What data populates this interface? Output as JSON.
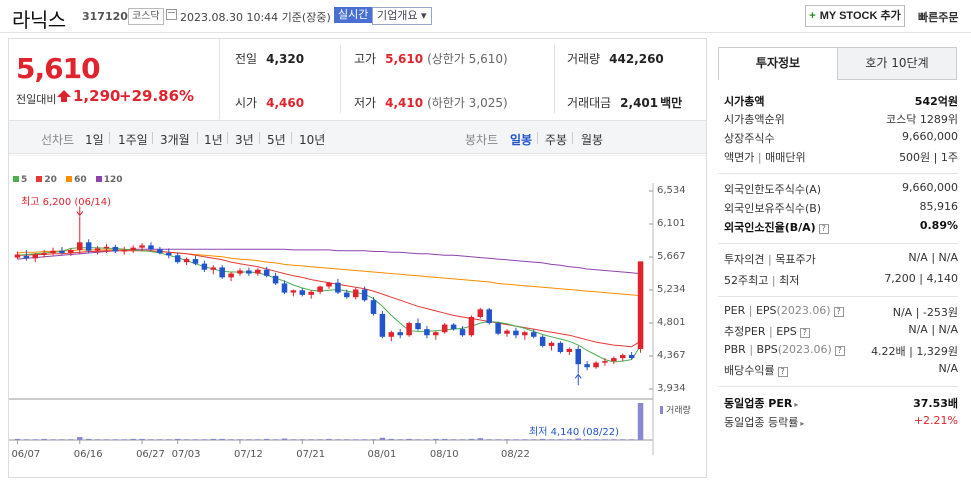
{
  "header": {
    "name": "라닉스",
    "code": "317120",
    "market": "코스닥",
    "datetime": "2023.08.30 10:44 기준(장중)",
    "live": "실시간",
    "company_info": "기업개요 ▾",
    "mystock": "MY STOCK 추가",
    "quick_order": "빠른주문"
  },
  "price": {
    "current": "5,610",
    "change_label": "전일대비",
    "change": "1,290",
    "change_pct": "+29.86%"
  },
  "stats": {
    "prev_label": "전일",
    "prev": "4,320",
    "high_label": "고가",
    "high": "5,610",
    "high_sub": "(상한가 5,610)",
    "volume_label": "거래량",
    "volume": "442,260",
    "open_label": "시가",
    "open": "4,460",
    "low_label": "저가",
    "low": "4,410",
    "low_sub": "(하한가 3,025)",
    "amount_label": "거래대금",
    "amount": "2,401",
    "amount_unit": "백만"
  },
  "toolbar": {
    "line_chart": "선차트",
    "periods": [
      "1일",
      "1주일",
      "3개월",
      "1년",
      "3년",
      "5년",
      "10년"
    ],
    "candle_chart": "봉차트",
    "candle_periods": [
      "일봉",
      "주봉",
      "월봉"
    ],
    "selected_candle": "일봉"
  },
  "chart_data": {
    "type": "candlestick",
    "legend": [
      "5",
      "20",
      "60",
      "120"
    ],
    "legend_colors": [
      "#4caf50",
      "#e53935",
      "#fb8c00",
      "#8e44ad"
    ],
    "y_ticks": [
      "6,534",
      "6,101",
      "5,667",
      "5,234",
      "4,801",
      "4,367",
      "3,934"
    ],
    "x_ticks": [
      "06/07",
      "06/16",
      "06/27",
      "07/03",
      "07/12",
      "07/21",
      "08/01",
      "08/10",
      "08/22"
    ],
    "ylim": [
      3934,
      6534
    ],
    "annotations": {
      "high": "최고 6,200 (06/14)",
      "low": "최저 4,140 (08/22)"
    },
    "volume_label": "거래량",
    "ohlc": [
      [
        5660,
        5740,
        5640,
        5700
      ],
      [
        5680,
        5760,
        5620,
        5650
      ],
      [
        5650,
        5720,
        5600,
        5700
      ],
      [
        5700,
        5760,
        5660,
        5720
      ],
      [
        5720,
        5790,
        5690,
        5750
      ],
      [
        5750,
        5800,
        5700,
        5720
      ],
      [
        5720,
        5780,
        5680,
        5760
      ],
      [
        5760,
        6200,
        5700,
        5860
      ],
      [
        5860,
        5900,
        5720,
        5750
      ],
      [
        5750,
        5810,
        5700,
        5780
      ],
      [
        5780,
        5840,
        5720,
        5800
      ],
      [
        5800,
        5830,
        5720,
        5740
      ],
      [
        5740,
        5800,
        5700,
        5760
      ],
      [
        5760,
        5820,
        5720,
        5790
      ],
      [
        5790,
        5850,
        5740,
        5820
      ],
      [
        5820,
        5860,
        5750,
        5770
      ],
      [
        5770,
        5800,
        5700,
        5720
      ],
      [
        5720,
        5780,
        5650,
        5690
      ],
      [
        5690,
        5730,
        5580,
        5600
      ],
      [
        5600,
        5660,
        5560,
        5640
      ],
      [
        5640,
        5680,
        5560,
        5580
      ],
      [
        5580,
        5620,
        5470,
        5500
      ],
      [
        5500,
        5560,
        5440,
        5530
      ],
      [
        5530,
        5560,
        5380,
        5400
      ],
      [
        5400,
        5470,
        5350,
        5450
      ],
      [
        5450,
        5520,
        5420,
        5490
      ],
      [
        5490,
        5530,
        5420,
        5450
      ],
      [
        5450,
        5520,
        5420,
        5500
      ],
      [
        5500,
        5540,
        5400,
        5420
      ],
      [
        5420,
        5460,
        5300,
        5320
      ],
      [
        5320,
        5360,
        5180,
        5200
      ],
      [
        5200,
        5240,
        5150,
        5230
      ],
      [
        5230,
        5260,
        5150,
        5170
      ],
      [
        5170,
        5230,
        5120,
        5210
      ],
      [
        5210,
        5290,
        5180,
        5280
      ],
      [
        5280,
        5340,
        5250,
        5330
      ],
      [
        5330,
        5380,
        5180,
        5200
      ],
      [
        5200,
        5240,
        5120,
        5140
      ],
      [
        5140,
        5260,
        5110,
        5240
      ],
      [
        5240,
        5280,
        5080,
        5100
      ],
      [
        5100,
        5140,
        4900,
        4920
      ],
      [
        4920,
        4960,
        4600,
        4620
      ],
      [
        4620,
        4700,
        4560,
        4680
      ],
      [
        4680,
        4720,
        4600,
        4640
      ],
      [
        4640,
        4820,
        4620,
        4800
      ],
      [
        4800,
        4860,
        4700,
        4720
      ],
      [
        4720,
        4760,
        4600,
        4640
      ],
      [
        4640,
        4700,
        4580,
        4680
      ],
      [
        4680,
        4800,
        4660,
        4780
      ],
      [
        4780,
        4800,
        4700,
        4720
      ],
      [
        4720,
        4760,
        4620,
        4640
      ],
      [
        4640,
        4900,
        4620,
        4880
      ],
      [
        4880,
        5000,
        4860,
        4980
      ],
      [
        4980,
        5000,
        4780,
        4800
      ],
      [
        4800,
        4820,
        4640,
        4660
      ],
      [
        4660,
        4720,
        4620,
        4700
      ],
      [
        4700,
        4740,
        4600,
        4640
      ],
      [
        4640,
        4700,
        4580,
        4680
      ],
      [
        4680,
        4720,
        4600,
        4620
      ],
      [
        4620,
        4640,
        4480,
        4500
      ],
      [
        4500,
        4560,
        4440,
        4540
      ],
      [
        4540,
        4560,
        4400,
        4420
      ],
      [
        4420,
        4480,
        4380,
        4460
      ],
      [
        4460,
        4500,
        4140,
        4260
      ],
      [
        4260,
        4300,
        4180,
        4220
      ],
      [
        4220,
        4300,
        4200,
        4280
      ],
      [
        4280,
        4340,
        4240,
        4300
      ],
      [
        4300,
        4360,
        4260,
        4340
      ],
      [
        4340,
        4400,
        4300,
        4380
      ],
      [
        4380,
        4420,
        4320,
        4340
      ],
      [
        4460,
        5610,
        4410,
        5610
      ]
    ],
    "ma5": [
      5690,
      5700,
      5710,
      5720,
      5730,
      5740,
      5780,
      5790,
      5790,
      5790,
      5780,
      5780,
      5770,
      5760,
      5750,
      5740,
      5720,
      5690,
      5660,
      5620,
      5580,
      5540,
      5510,
      5480,
      5470,
      5470,
      5470,
      5460,
      5430,
      5390,
      5350,
      5300,
      5260,
      5230,
      5220,
      5230,
      5240,
      5220,
      5200,
      5180,
      5120,
      5020,
      4900,
      4800,
      4700,
      4690,
      4690,
      4700,
      4710,
      4720,
      4730,
      4760,
      4800,
      4820,
      4810,
      4790,
      4760,
      4730,
      4690,
      4650,
      4620,
      4590,
      4560,
      4510,
      4440,
      4380,
      4320,
      4290,
      4300,
      4320,
      4500
    ],
    "ma20": [
      5690,
      5690,
      5700,
      5700,
      5710,
      5710,
      5720,
      5730,
      5740,
      5740,
      5750,
      5750,
      5750,
      5750,
      5750,
      5750,
      5740,
      5730,
      5720,
      5710,
      5690,
      5670,
      5650,
      5630,
      5600,
      5580,
      5560,
      5540,
      5510,
      5480,
      5450,
      5420,
      5400,
      5370,
      5350,
      5330,
      5310,
      5290,
      5270,
      5250,
      5220,
      5180,
      5140,
      5100,
      5060,
      5020,
      4990,
      4960,
      4930,
      4900,
      4880,
      4860,
      4840,
      4820,
      4800,
      4780,
      4760,
      4740,
      4720,
      4700,
      4680,
      4660,
      4640,
      4610,
      4580,
      4550,
      4530,
      4510,
      4500,
      4490,
      4560
    ],
    "ma60": [
      5720,
      5730,
      5730,
      5740,
      5740,
      5750,
      5750,
      5760,
      5760,
      5760,
      5760,
      5760,
      5760,
      5760,
      5750,
      5750,
      5740,
      5730,
      5720,
      5710,
      5700,
      5690,
      5680,
      5670,
      5650,
      5640,
      5630,
      5620,
      5600,
      5590,
      5570,
      5560,
      5550,
      5540,
      5530,
      5520,
      5510,
      5500,
      5490,
      5480,
      5470,
      5460,
      5450,
      5440,
      5430,
      5420,
      5410,
      5400,
      5390,
      5380,
      5370,
      5360,
      5350,
      5340,
      5320,
      5310,
      5300,
      5290,
      5280,
      5270,
      5260,
      5250,
      5240,
      5230,
      5220,
      5210,
      5200,
      5190,
      5180,
      5170,
      5160
    ],
    "ma120": [
      5640,
      5650,
      5660,
      5670,
      5680,
      5690,
      5700,
      5710,
      5720,
      5730,
      5740,
      5750,
      5760,
      5770,
      5770,
      5770,
      5770,
      5770,
      5770,
      5770,
      5770,
      5770,
      5770,
      5770,
      5770,
      5770,
      5770,
      5770,
      5770,
      5770,
      5770,
      5760,
      5760,
      5760,
      5760,
      5760,
      5750,
      5750,
      5750,
      5750,
      5740,
      5740,
      5730,
      5730,
      5720,
      5710,
      5710,
      5700,
      5690,
      5690,
      5680,
      5670,
      5660,
      5650,
      5640,
      5630,
      5620,
      5610,
      5600,
      5590,
      5570,
      5560,
      5540,
      5530,
      5510,
      5500,
      5490,
      5480,
      5470,
      5460,
      5450
    ],
    "volume": [
      3,
      2,
      2,
      3,
      2,
      2,
      2,
      8,
      3,
      2,
      2,
      2,
      2,
      3,
      3,
      2,
      2,
      2,
      3,
      2,
      2,
      2,
      3,
      3,
      2,
      2,
      2,
      2,
      3,
      2,
      4,
      2,
      2,
      2,
      2,
      3,
      2,
      2,
      2,
      2,
      2,
      6,
      3,
      2,
      3,
      2,
      2,
      3,
      3,
      2,
      2,
      3,
      5,
      2,
      2,
      2,
      2,
      2,
      2,
      3,
      2,
      2,
      2,
      4,
      2,
      2,
      2,
      2,
      2,
      2,
      100
    ]
  },
  "info": {
    "tabs": [
      "투자정보",
      "호가 10단계"
    ],
    "market_cap_label": "시가총액",
    "market_cap": "542억원",
    "rank_label": "시가총액순위",
    "rank": "코스닥 1289위",
    "shares_label": "상장주식수",
    "shares": "9,660,000",
    "par_label": "액면가",
    "unit_label": "매매단위",
    "par_unit": "500원 | 1주",
    "foreign_limit_label": "외국인한도주식수(A)",
    "foreign_limit": "9,660,000",
    "foreign_hold_label": "외국인보유주식수(B)",
    "foreign_hold": "85,916",
    "foreign_ratio_label": "외국인소진율(B/A)",
    "foreign_ratio": "0.89%",
    "opinion_label": "투자의견",
    "target_label": "목표주가",
    "opinion_target": "N/A | N/A",
    "w52_label": "52주최고",
    "w52_low_label": "최저",
    "w52": "7,200 | 4,140",
    "per_label": "PER",
    "eps_label": "EPS",
    "per_period": "(2023.06)",
    "per_eps": "N/A | -253원",
    "est_per_label": "추정PER",
    "est_eps_label": "EPS",
    "est_per_eps": "N/A | N/A",
    "pbr_label": "PBR",
    "bps_label": "BPS",
    "pbr_period": "(2023.06)",
    "pbr_bps": "4.22배 | 1,329원",
    "div_label": "배당수익률",
    "div": "N/A",
    "ind_per_label": "동일업종 PER",
    "ind_per": "37.53배",
    "ind_chg_label": "동일업종 등락률",
    "ind_chg": "+2.21%"
  }
}
